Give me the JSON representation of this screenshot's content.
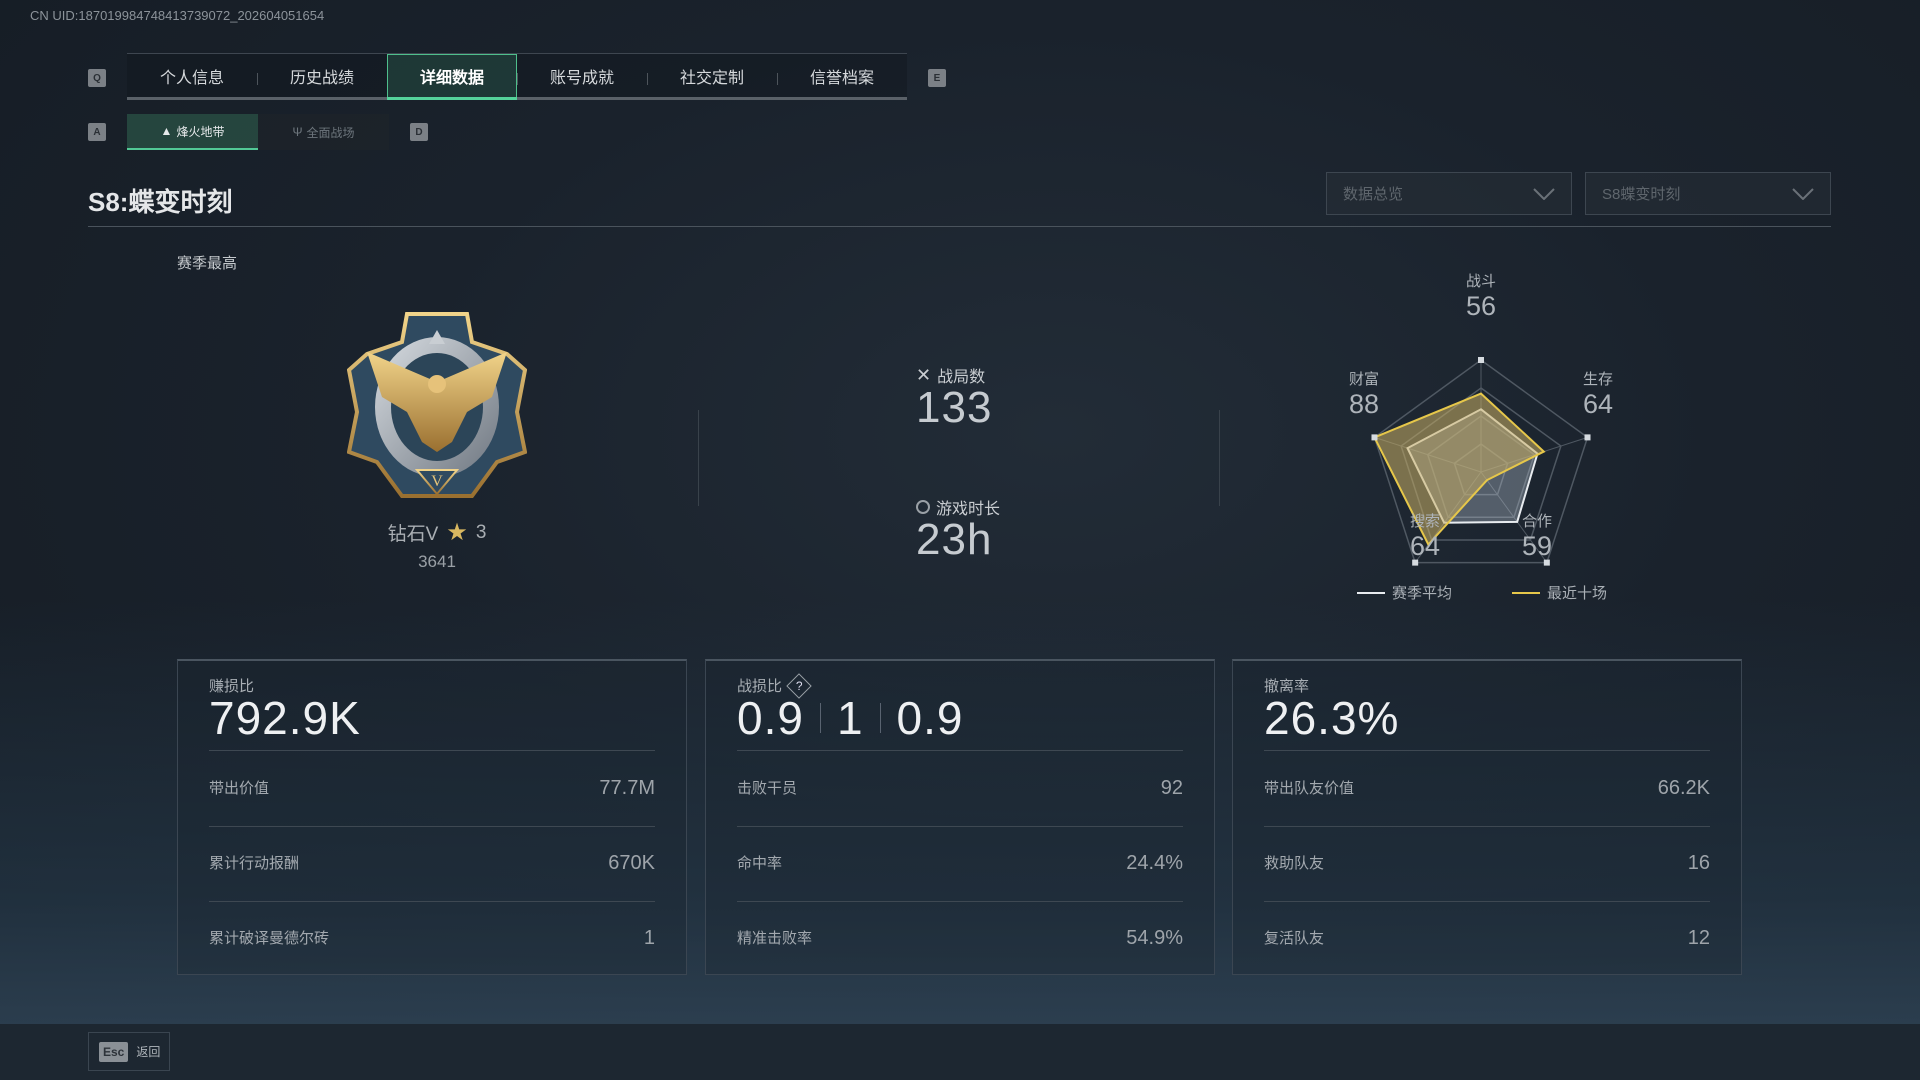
{
  "uid": "CN UID:18701998474841373907​2_202604051654",
  "tabs": {
    "prev_key": "Q",
    "next_key": "E",
    "items": [
      {
        "label": "个人信息"
      },
      {
        "label": "历史战绩"
      },
      {
        "label": "详细数据",
        "active": true
      },
      {
        "label": "账号成就"
      },
      {
        "label": "社交定制"
      },
      {
        "label": "信誉档案"
      }
    ]
  },
  "subtabs": {
    "prev_key": "A",
    "next_key": "D",
    "items": [
      {
        "label": "烽火地带",
        "icon": "bonfire-icon",
        "active": true
      },
      {
        "label": "全面战场",
        "icon": "battlefield-icon"
      }
    ]
  },
  "season_title": "S8:蝶变时刻",
  "filters": {
    "view": "数据总览",
    "season": "S8蝶变时刻"
  },
  "season_best": {
    "label": "赛季最高",
    "rank": "钻石V",
    "stars": "3",
    "score": "3641"
  },
  "summary": {
    "matches": {
      "label": "战局数",
      "value": "133",
      "icon": "crossed-swords-icon"
    },
    "playtime": {
      "label": "游戏时长",
      "value": "23h",
      "icon": "stopwatch-icon"
    }
  },
  "chart_data": {
    "type": "radar",
    "axes": [
      "战斗",
      "生存",
      "合作",
      "搜索",
      "财富"
    ],
    "axis_values": [
      "56",
      "64",
      "59",
      "64",
      "88"
    ],
    "range": [
      0,
      100
    ],
    "series": [
      {
        "name": "赛季平均",
        "color": "#e8ecf0",
        "values": [
          56,
          53,
          55,
          56,
          69
        ]
      },
      {
        "name": "最近十场",
        "color": "#e6c74a",
        "values": [
          70,
          59,
          9,
          80,
          100
        ]
      }
    ],
    "legend": "bottom"
  },
  "cards": [
    {
      "label": "赚损比",
      "big": [
        "792.9K"
      ],
      "rows": [
        {
          "label": "带出价值",
          "value": "77.7M"
        },
        {
          "label": "累计行动报酬",
          "value": "670K"
        },
        {
          "label": "累计破译曼德尔砖",
          "value": "1"
        }
      ]
    },
    {
      "label": "战损比",
      "help_icon": "?",
      "big": [
        "0.9",
        "1",
        "0.9"
      ],
      "rows": [
        {
          "label": "击败干员",
          "value": "92"
        },
        {
          "label": "命中率",
          "value": "24.4%"
        },
        {
          "label": "精准击败率",
          "value": "54.9%"
        }
      ]
    },
    {
      "label": "撤离率",
      "big": [
        "26.3%"
      ],
      "rows": [
        {
          "label": "带出队友价值",
          "value": "66.2K"
        },
        {
          "label": "救助队友",
          "value": "16"
        },
        {
          "label": "复活队友",
          "value": "12"
        }
      ]
    }
  ],
  "footer": {
    "esc_key": "Esc",
    "back_label": "返回"
  },
  "colors": {
    "accent": "#55d39b",
    "gold": "#e6c74a"
  }
}
